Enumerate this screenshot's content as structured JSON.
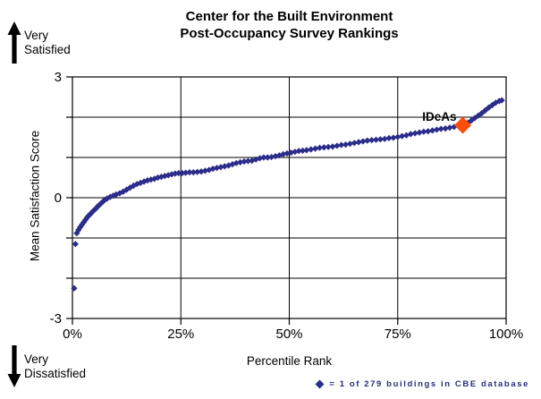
{
  "chart_data": {
    "type": "scatter",
    "title_lines": [
      "Center for the Built Environment",
      "Post-Occupancy Survey Rankings"
    ],
    "xlabel": "Percentile Rank",
    "ylabel": "Mean Satisfaction Score",
    "xlim": [
      0,
      100
    ],
    "ylim": [
      -3,
      3
    ],
    "grid": true,
    "legend_position": "bottom-right",
    "xticks": [
      {
        "value": 0,
        "label": "0%"
      },
      {
        "value": 25,
        "label": "25%"
      },
      {
        "value": 50,
        "label": "50%"
      },
      {
        "value": 75,
        "label": "75%"
      },
      {
        "value": 100,
        "label": "100%"
      }
    ],
    "yticks": [
      {
        "value": 3,
        "label": "3"
      },
      {
        "value": 2,
        "label": ""
      },
      {
        "value": 1,
        "label": ""
      },
      {
        "value": 0,
        "label": "0"
      },
      {
        "value": -1,
        "label": ""
      },
      {
        "value": -2,
        "label": ""
      },
      {
        "value": -3,
        "label": "-3"
      }
    ],
    "series": [
      {
        "name": "CBE database buildings",
        "marker": "diamond",
        "color": "#2c2c8a",
        "points": [
          [
            0.4,
            -2.25
          ],
          [
            0.7,
            -1.15
          ],
          [
            1.0,
            -0.88
          ],
          [
            1.4,
            -0.8
          ],
          [
            1.8,
            -0.73
          ],
          [
            2.2,
            -0.67
          ],
          [
            2.6,
            -0.61
          ],
          [
            3.0,
            -0.55
          ],
          [
            3.4,
            -0.49
          ],
          [
            3.8,
            -0.44
          ],
          [
            4.2,
            -0.4
          ],
          [
            4.6,
            -0.35
          ],
          [
            5.0,
            -0.31
          ],
          [
            5.4,
            -0.27
          ],
          [
            5.8,
            -0.22
          ],
          [
            6.2,
            -0.18
          ],
          [
            6.6,
            -0.14
          ],
          [
            7.0,
            -0.1
          ],
          [
            7.5,
            -0.05
          ],
          [
            8.0,
            -0.02
          ],
          [
            8.7,
            0.02
          ],
          [
            9.4,
            0.05
          ],
          [
            10.1,
            0.08
          ],
          [
            10.9,
            0.11
          ],
          [
            11.7,
            0.15
          ],
          [
            12.5,
            0.2
          ],
          [
            13.3,
            0.25
          ],
          [
            14.1,
            0.3
          ],
          [
            14.9,
            0.34
          ],
          [
            15.7,
            0.37
          ],
          [
            16.5,
            0.4
          ],
          [
            17.3,
            0.43
          ],
          [
            18.1,
            0.45
          ],
          [
            18.9,
            0.47
          ],
          [
            19.7,
            0.5
          ],
          [
            20.5,
            0.52
          ],
          [
            21.3,
            0.54
          ],
          [
            22.1,
            0.56
          ],
          [
            22.9,
            0.58
          ],
          [
            23.7,
            0.6
          ],
          [
            24.5,
            0.61
          ],
          [
            25.3,
            0.61
          ],
          [
            26.1,
            0.62
          ],
          [
            27.0,
            0.63
          ],
          [
            27.9,
            0.63
          ],
          [
            28.8,
            0.64
          ],
          [
            29.7,
            0.65
          ],
          [
            30.6,
            0.67
          ],
          [
            31.5,
            0.69
          ],
          [
            32.4,
            0.72
          ],
          [
            33.3,
            0.74
          ],
          [
            34.2,
            0.76
          ],
          [
            35.1,
            0.78
          ],
          [
            36.0,
            0.8
          ],
          [
            36.9,
            0.83
          ],
          [
            37.8,
            0.86
          ],
          [
            38.7,
            0.88
          ],
          [
            39.6,
            0.9
          ],
          [
            40.5,
            0.91
          ],
          [
            41.4,
            0.92
          ],
          [
            42.3,
            0.95
          ],
          [
            43.2,
            0.98
          ],
          [
            44.1,
            1.0
          ],
          [
            45.0,
            1.0
          ],
          [
            45.9,
            1.01
          ],
          [
            46.8,
            1.03
          ],
          [
            47.7,
            1.05
          ],
          [
            48.6,
            1.08
          ],
          [
            49.5,
            1.1
          ],
          [
            50.4,
            1.12
          ],
          [
            51.3,
            1.14
          ],
          [
            52.2,
            1.16
          ],
          [
            53.1,
            1.17
          ],
          [
            54.0,
            1.18
          ],
          [
            55.0,
            1.2
          ],
          [
            56.0,
            1.22
          ],
          [
            57.0,
            1.24
          ],
          [
            58.0,
            1.25
          ],
          [
            59.0,
            1.26
          ],
          [
            60.0,
            1.27
          ],
          [
            61.0,
            1.29
          ],
          [
            62.0,
            1.31
          ],
          [
            63.0,
            1.32
          ],
          [
            64.0,
            1.34
          ],
          [
            65.0,
            1.36
          ],
          [
            66.0,
            1.38
          ],
          [
            67.0,
            1.4
          ],
          [
            68.0,
            1.42
          ],
          [
            69.0,
            1.43
          ],
          [
            70.0,
            1.44
          ],
          [
            71.0,
            1.45
          ],
          [
            72.0,
            1.46
          ],
          [
            73.0,
            1.48
          ],
          [
            74.0,
            1.49
          ],
          [
            75.0,
            1.51
          ],
          [
            76.0,
            1.53
          ],
          [
            77.0,
            1.55
          ],
          [
            78.0,
            1.58
          ],
          [
            79.0,
            1.6
          ],
          [
            80.0,
            1.62
          ],
          [
            81.0,
            1.64
          ],
          [
            82.0,
            1.65
          ],
          [
            83.0,
            1.67
          ],
          [
            84.0,
            1.69
          ],
          [
            85.0,
            1.71
          ],
          [
            86.0,
            1.72
          ],
          [
            87.0,
            1.74
          ],
          [
            88.0,
            1.76
          ],
          [
            89.0,
            1.78
          ],
          [
            91.2,
            1.86
          ],
          [
            92.0,
            1.92
          ],
          [
            92.8,
            1.98
          ],
          [
            93.6,
            2.04
          ],
          [
            94.4,
            2.1
          ],
          [
            95.2,
            2.17
          ],
          [
            96.0,
            2.24
          ],
          [
            96.8,
            2.3
          ],
          [
            97.6,
            2.36
          ],
          [
            98.4,
            2.4
          ],
          [
            99.0,
            2.42
          ]
        ]
      }
    ],
    "highlight": {
      "label": "IDeAs",
      "x": 90,
      "y": 1.8,
      "color": "#fb4e0a"
    },
    "annotations": {
      "y_axis_top_lines": [
        "Very",
        "Satisfied"
      ],
      "y_axis_bottom_lines": [
        "Very",
        "Dissatisfied"
      ]
    },
    "legend_text": "= 1 of 279 buildings in CBE database",
    "legend_color": "#2b2b80",
    "line_color": "#000000"
  }
}
